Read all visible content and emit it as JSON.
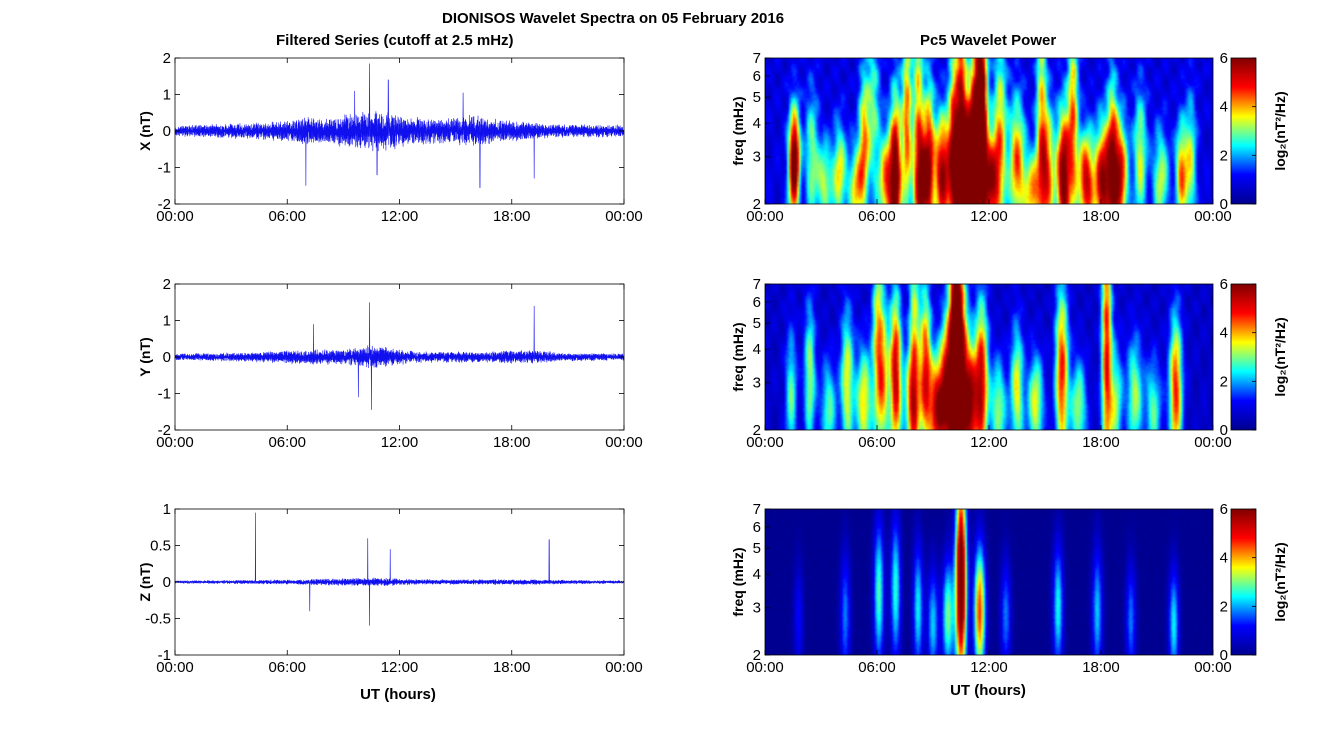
{
  "figure": {
    "title": "DIONISOS Wavelet Spectra on 05 February 2016",
    "left_title": "Filtered Series (cutoff at 2.5 mHz)",
    "right_title": "Pc5 Wavelet Power",
    "xlabel": "UT (hours)"
  },
  "colors": {
    "trace": "#1010ee",
    "spec_background": "#00008f",
    "colormap": [
      "#00008f",
      "#0000ff",
      "#00ffff",
      "#ffff00",
      "#ff0000",
      "#800000"
    ]
  },
  "chart_data": [
    {
      "type": "line",
      "name": "series-x",
      "ylabel": "X (nT)",
      "ylim": [
        -2,
        2
      ],
      "yticks": [
        "-2",
        "-1",
        "0",
        "1",
        "2"
      ],
      "xticks": [
        "00:00",
        "06:00",
        "12:00",
        "18:00",
        "00:00"
      ],
      "xlim_hours": [
        0,
        24
      ],
      "noise_amplitude": 0.15,
      "envelope": [
        [
          0,
          0.5
        ],
        [
          4,
          0.8
        ],
        [
          6,
          1.0
        ],
        [
          7,
          1.4
        ],
        [
          8,
          1.3
        ],
        [
          10,
          1.8
        ],
        [
          11,
          2.0
        ],
        [
          12,
          1.6
        ],
        [
          14,
          1.2
        ],
        [
          16,
          1.5
        ],
        [
          18,
          1.0
        ],
        [
          20,
          0.7
        ],
        [
          24,
          0.6
        ]
      ],
      "peaks": [
        [
          10.4,
          1.85
        ],
        [
          10.8,
          -1.2
        ],
        [
          7.0,
          -1.5
        ],
        [
          16.3,
          -1.55
        ],
        [
          15.4,
          1.05
        ],
        [
          11.4,
          1.4
        ],
        [
          19.2,
          -1.3
        ],
        [
          9.6,
          1.1
        ]
      ]
    },
    {
      "type": "line",
      "name": "series-y",
      "ylabel": "Y (nT)",
      "ylim": [
        -2,
        2
      ],
      "yticks": [
        "-2",
        "-1",
        "0",
        "1",
        "2"
      ],
      "xticks": [
        "00:00",
        "06:00",
        "12:00",
        "18:00",
        "00:00"
      ],
      "xlim_hours": [
        0,
        24
      ],
      "noise_amplitude": 0.1,
      "envelope": [
        [
          0,
          0.5
        ],
        [
          4,
          0.7
        ],
        [
          7,
          1.1
        ],
        [
          9,
          1.1
        ],
        [
          10.5,
          1.8
        ],
        [
          11.5,
          1.3
        ],
        [
          13,
          0.8
        ],
        [
          16,
          0.8
        ],
        [
          19,
          1.0
        ],
        [
          21,
          0.6
        ],
        [
          24,
          0.5
        ]
      ],
      "peaks": [
        [
          10.4,
          1.5
        ],
        [
          10.5,
          -1.45
        ],
        [
          19.2,
          1.4
        ],
        [
          7.4,
          0.9
        ],
        [
          9.8,
          -1.1
        ]
      ]
    },
    {
      "type": "line",
      "name": "series-z",
      "ylabel": "Z (nT)",
      "ylim": [
        -1,
        1
      ],
      "yticks": [
        "-1",
        "-0.5",
        "0",
        "0.5",
        "1"
      ],
      "xticks": [
        "00:00",
        "06:00",
        "12:00",
        "18:00",
        "00:00"
      ],
      "xlim_hours": [
        0,
        24
      ],
      "noise_amplitude": 0.06,
      "envelope": [
        [
          0,
          0.18
        ],
        [
          4,
          0.25
        ],
        [
          7,
          0.35
        ],
        [
          10,
          0.5
        ],
        [
          11,
          0.55
        ],
        [
          12,
          0.4
        ],
        [
          14,
          0.3
        ],
        [
          18,
          0.35
        ],
        [
          20,
          0.3
        ],
        [
          24,
          0.2
        ]
      ],
      "peaks": [
        [
          4.3,
          0.95
        ],
        [
          10.4,
          -0.6
        ],
        [
          10.3,
          0.6
        ],
        [
          20.0,
          0.58
        ],
        [
          11.5,
          0.45
        ],
        [
          7.2,
          -0.4
        ]
      ]
    },
    {
      "type": "heatmap",
      "name": "spec-x",
      "ylabel": "freq (mHz)",
      "ylim_mhz": [
        2,
        7
      ],
      "yscale": "log",
      "yticks": [
        "2",
        "3",
        "4",
        "5",
        "6",
        "7"
      ],
      "xticks": [
        "00:00",
        "06:00",
        "12:00",
        "18:00",
        "00:00"
      ],
      "xlim_hours": [
        0,
        24
      ],
      "colorbar_label": "log₂(nT²/Hz)",
      "colorbar_ticks": [
        "0",
        "2",
        "4",
        "6"
      ],
      "clim": [
        0,
        6
      ],
      "noise_floor": 1.2,
      "blobs": [
        [
          1.5,
          2.6,
          2.5,
          0.22,
          0.35
        ],
        [
          1.6,
          3.0,
          4.0,
          0.2,
          0.3
        ],
        [
          2.5,
          3.0,
          2.2,
          0.25,
          0.4
        ],
        [
          3.2,
          2.4,
          2.5,
          0.3,
          0.25
        ],
        [
          4.0,
          2.6,
          2.8,
          0.25,
          0.3
        ],
        [
          4.9,
          2.3,
          3.0,
          0.3,
          0.25
        ],
        [
          5.3,
          3.5,
          3.0,
          0.2,
          0.4
        ],
        [
          6.5,
          2.4,
          3.5,
          0.3,
          0.3
        ],
        [
          7.0,
          2.5,
          5.2,
          0.22,
          0.5
        ],
        [
          7.6,
          4.0,
          3.5,
          0.18,
          0.6
        ],
        [
          8.4,
          2.4,
          4.8,
          0.3,
          0.35
        ],
        [
          8.8,
          3.0,
          3.2,
          0.2,
          0.5
        ],
        [
          9.5,
          2.6,
          5.0,
          0.3,
          0.35
        ],
        [
          10.1,
          3.0,
          4.0,
          0.2,
          0.6
        ],
        [
          10.7,
          2.5,
          5.8,
          0.35,
          0.4
        ],
        [
          11.3,
          3.2,
          5.8,
          0.3,
          0.55
        ],
        [
          11.6,
          5.0,
          4.5,
          0.22,
          0.7
        ],
        [
          12.1,
          2.4,
          4.5,
          0.3,
          0.3
        ],
        [
          12.6,
          3.5,
          3.0,
          0.25,
          0.6
        ],
        [
          13.5,
          2.8,
          3.6,
          0.3,
          0.4
        ],
        [
          14.3,
          2.2,
          3.0,
          0.3,
          0.25
        ],
        [
          15.1,
          2.6,
          3.8,
          0.3,
          0.4
        ],
        [
          16.0,
          2.5,
          5.6,
          0.25,
          0.4
        ],
        [
          16.5,
          4.2,
          3.3,
          0.2,
          0.6
        ],
        [
          17.2,
          2.4,
          4.6,
          0.3,
          0.3
        ],
        [
          18.1,
          2.4,
          5.0,
          0.3,
          0.35
        ],
        [
          18.6,
          3.0,
          3.2,
          0.2,
          0.5
        ],
        [
          19.0,
          2.5,
          4.6,
          0.3,
          0.35
        ],
        [
          20.1,
          3.0,
          2.6,
          0.25,
          0.4
        ],
        [
          21.2,
          2.5,
          2.5,
          0.3,
          0.3
        ],
        [
          22.3,
          2.6,
          3.4,
          0.22,
          0.3
        ],
        [
          22.8,
          2.8,
          2.4,
          0.22,
          0.4
        ],
        [
          10.5,
          5.5,
          3.5,
          0.2,
          0.8
        ],
        [
          8.2,
          5.8,
          2.6,
          0.2,
          0.7
        ],
        [
          14.8,
          5.0,
          2.4,
          0.2,
          0.8
        ],
        [
          5.8,
          4.5,
          2.0,
          0.25,
          0.5
        ]
      ]
    },
    {
      "type": "heatmap",
      "name": "spec-y",
      "ylabel": "freq (mHz)",
      "ylim_mhz": [
        2,
        7
      ],
      "yscale": "log",
      "yticks": [
        "2",
        "3",
        "4",
        "5",
        "6",
        "7"
      ],
      "xticks": [
        "00:00",
        "06:00",
        "12:00",
        "18:00",
        "00:00"
      ],
      "xlim_hours": [
        0,
        24
      ],
      "colorbar_label": "log₂(nT²/Hz)",
      "colorbar_ticks": [
        "0",
        "2",
        "4",
        "6"
      ],
      "clim": [
        0,
        6
      ],
      "noise_floor": 0.9,
      "blobs": [
        [
          1.4,
          2.7,
          2.2,
          0.22,
          0.4
        ],
        [
          2.4,
          3.2,
          2.6,
          0.22,
          0.45
        ],
        [
          3.4,
          2.4,
          2.2,
          0.3,
          0.3
        ],
        [
          4.4,
          3.0,
          3.0,
          0.25,
          0.45
        ],
        [
          5.3,
          2.5,
          3.2,
          0.3,
          0.35
        ],
        [
          6.3,
          3.1,
          3.4,
          0.25,
          0.5
        ],
        [
          7.0,
          3.2,
          4.8,
          0.22,
          0.5
        ],
        [
          7.9,
          2.5,
          3.6,
          0.3,
          0.35
        ],
        [
          8.6,
          3.4,
          4.0,
          0.22,
          0.5
        ],
        [
          9.2,
          2.4,
          4.6,
          0.3,
          0.3
        ],
        [
          9.8,
          2.8,
          5.0,
          0.3,
          0.45
        ],
        [
          10.4,
          3.2,
          6.0,
          0.3,
          0.7
        ],
        [
          11.0,
          2.5,
          4.8,
          0.28,
          0.35
        ],
        [
          11.6,
          3.0,
          4.6,
          0.25,
          0.5
        ],
        [
          12.5,
          2.4,
          2.6,
          0.3,
          0.3
        ],
        [
          13.5,
          2.8,
          3.0,
          0.25,
          0.4
        ],
        [
          14.5,
          2.5,
          3.0,
          0.3,
          0.3
        ],
        [
          15.9,
          3.2,
          4.2,
          0.25,
          0.55
        ],
        [
          16.8,
          2.4,
          2.6,
          0.3,
          0.3
        ],
        [
          18.3,
          4.0,
          4.2,
          0.2,
          0.9
        ],
        [
          18.8,
          2.5,
          2.4,
          0.25,
          0.35
        ],
        [
          19.8,
          2.7,
          2.6,
          0.3,
          0.35
        ],
        [
          20.8,
          2.4,
          2.2,
          0.3,
          0.3
        ],
        [
          22.0,
          2.8,
          4.2,
          0.25,
          0.45
        ],
        [
          10.2,
          5.5,
          3.6,
          0.2,
          0.8
        ],
        [
          8.0,
          5.5,
          2.5,
          0.2,
          0.8
        ],
        [
          6.0,
          5.0,
          2.2,
          0.2,
          0.6
        ]
      ]
    },
    {
      "type": "heatmap",
      "name": "spec-z",
      "ylabel": "freq (mHz)",
      "ylim_mhz": [
        2,
        7
      ],
      "yscale": "log",
      "yticks": [
        "2",
        "3",
        "4",
        "5",
        "6",
        "7"
      ],
      "xticks": [
        "00:00",
        "06:00",
        "12:00",
        "18:00",
        "00:00"
      ],
      "xlim_hours": [
        0,
        24
      ],
      "colorbar_label": "log₂(nT²/Hz)",
      "colorbar_ticks": [
        "0",
        "2",
        "4",
        "6"
      ],
      "clim": [
        0,
        6
      ],
      "noise_floor": 0.0,
      "blobs": [
        [
          1.8,
          2.7,
          1.2,
          0.18,
          0.35
        ],
        [
          4.3,
          2.8,
          1.8,
          0.2,
          0.4
        ],
        [
          6.1,
          3.4,
          2.8,
          0.2,
          0.45
        ],
        [
          7.0,
          3.5,
          2.6,
          0.2,
          0.45
        ],
        [
          8.2,
          3.0,
          2.4,
          0.2,
          0.4
        ],
        [
          9.0,
          2.6,
          2.2,
          0.22,
          0.35
        ],
        [
          9.8,
          2.8,
          3.0,
          0.22,
          0.35
        ],
        [
          10.5,
          3.2,
          5.0,
          0.22,
          0.55
        ],
        [
          11.5,
          2.9,
          4.6,
          0.22,
          0.4
        ],
        [
          12.9,
          2.8,
          1.8,
          0.2,
          0.35
        ],
        [
          15.7,
          3.0,
          2.5,
          0.2,
          0.4
        ],
        [
          17.8,
          2.9,
          2.2,
          0.2,
          0.4
        ],
        [
          19.6,
          2.7,
          1.8,
          0.2,
          0.35
        ],
        [
          21.9,
          2.6,
          2.4,
          0.2,
          0.35
        ],
        [
          10.5,
          5.5,
          2.8,
          0.2,
          0.6
        ]
      ]
    }
  ]
}
